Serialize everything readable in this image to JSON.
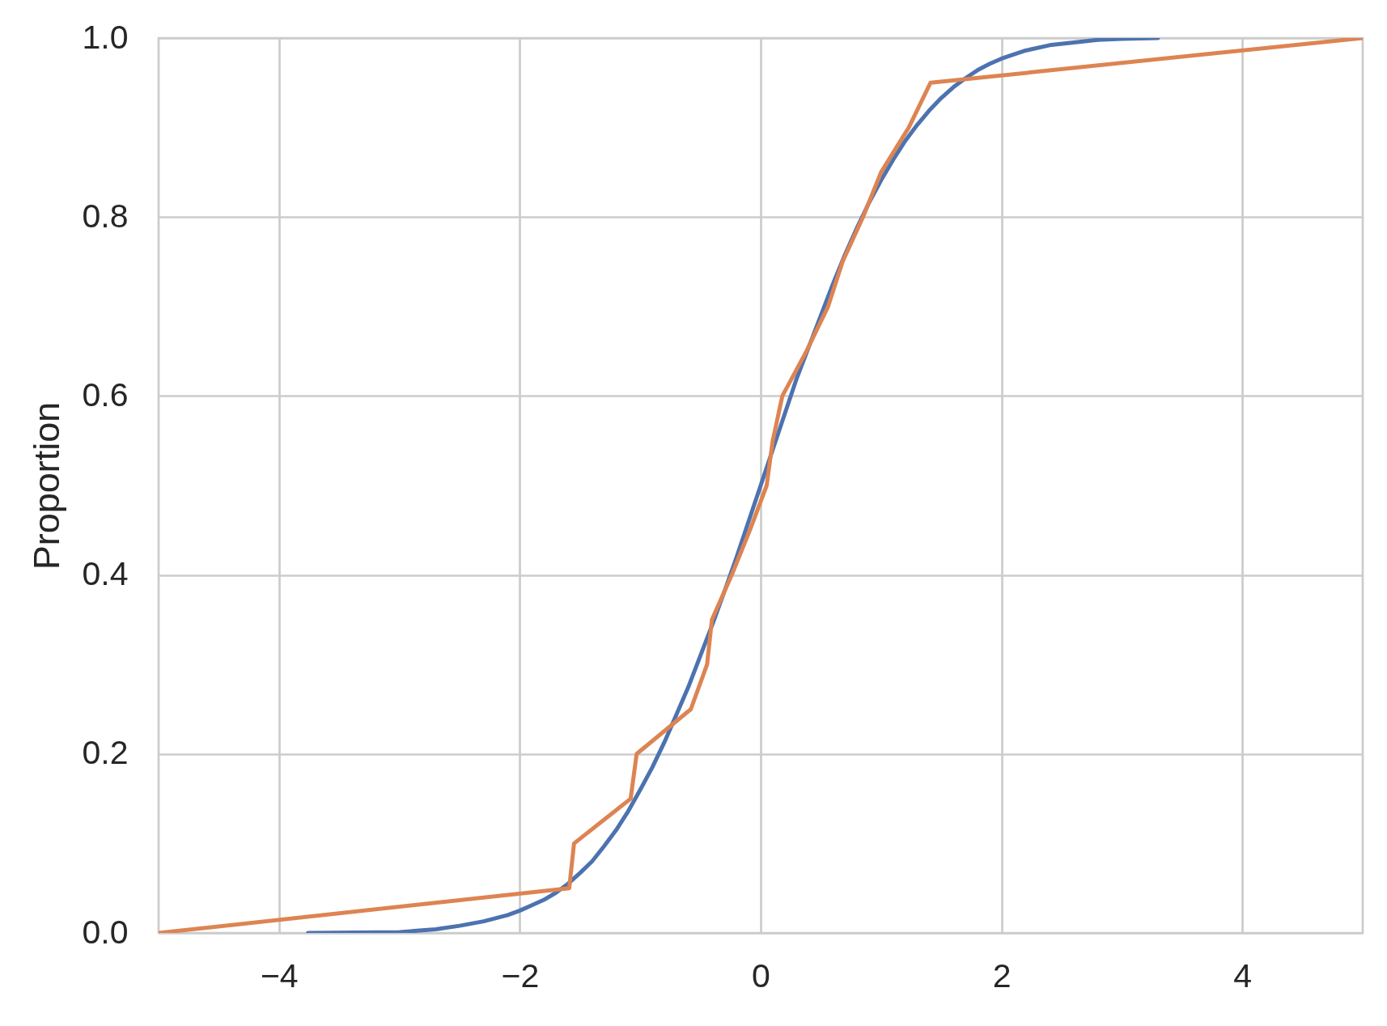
{
  "chart_data": {
    "type": "line",
    "ylabel": "Proportion",
    "xlim": [
      -5,
      5
    ],
    "ylim": [
      0,
      1
    ],
    "xticks": [
      {
        "value": -4,
        "label": "−4"
      },
      {
        "value": -2,
        "label": "−2"
      },
      0,
      2,
      4
    ],
    "yticks": [
      {
        "value": 0,
        "label": "0.0"
      },
      0.2,
      0.4,
      0.6,
      0.8,
      {
        "value": 1,
        "label": "1.0"
      }
    ],
    "grid": true,
    "series": [
      {
        "color": "#4c72b0",
        "x": [
          -3.76,
          -3.0,
          -2.7,
          -2.5,
          -2.3,
          -2.1,
          -2.0,
          -1.9,
          -1.8,
          -1.7,
          -1.6,
          -1.5,
          -1.4,
          -1.3,
          -1.2,
          -1.1,
          -1.0,
          -0.9,
          -0.8,
          -0.7,
          -0.6,
          -0.5,
          -0.4,
          -0.3,
          -0.2,
          -0.1,
          0,
          0.1,
          0.2,
          0.3,
          0.4,
          0.5,
          0.6,
          0.7,
          0.8,
          0.9,
          1.0,
          1.1,
          1.2,
          1.3,
          1.4,
          1.5,
          1.6,
          1.7,
          1.8,
          1.9,
          2.0,
          2.2,
          2.4,
          2.6,
          2.8,
          3.0,
          3.3
        ],
        "values": [
          0,
          0.001,
          0.004,
          0.008,
          0.013,
          0.02,
          0.025,
          0.031,
          0.037,
          0.045,
          0.055,
          0.067,
          0.08,
          0.097,
          0.115,
          0.136,
          0.16,
          0.185,
          0.213,
          0.244,
          0.275,
          0.31,
          0.345,
          0.382,
          0.42,
          0.46,
          0.5,
          0.54,
          0.58,
          0.62,
          0.655,
          0.69,
          0.725,
          0.758,
          0.788,
          0.816,
          0.841,
          0.864,
          0.885,
          0.903,
          0.919,
          0.933,
          0.945,
          0.955,
          0.964,
          0.971,
          0.977,
          0.986,
          0.992,
          0.995,
          0.998,
          0.999,
          1.0
        ]
      },
      {
        "color": "#dd8452",
        "x": [
          -5,
          -1.59,
          -1.55,
          -1.08,
          -1.03,
          -0.58,
          -0.445,
          -0.405,
          -0.24,
          -0.09,
          0.05,
          0.1,
          0.18,
          0.38,
          0.56,
          0.68,
          0.85,
          1.0,
          1.23,
          1.41,
          5
        ],
        "values": [
          0,
          0.05,
          0.1,
          0.15,
          0.2,
          0.25,
          0.3,
          0.35,
          0.4,
          0.45,
          0.5,
          0.55,
          0.6,
          0.65,
          0.7,
          0.75,
          0.8,
          0.85,
          0.9,
          0.95,
          1.0
        ]
      }
    ]
  }
}
